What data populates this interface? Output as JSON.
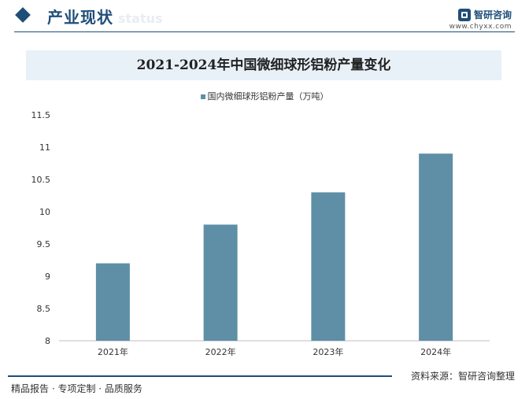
{
  "header": {
    "section_title": "产业现状",
    "section_subtitle": "status",
    "brand_name": "智研咨询",
    "brand_url": "www.chyxx.com"
  },
  "colors": {
    "accent": "#1f4e79",
    "bar": "#5e8fa6",
    "title_band": "#e8f0f8"
  },
  "chart_data": {
    "type": "bar",
    "title": "2021-2024年中国微细球形铝粉产量变化",
    "categories": [
      "2021年",
      "2022年",
      "2023年",
      "2024年"
    ],
    "series": [
      {
        "name": "国内微细球形铝粉产量（万吨）",
        "values": [
          9.2,
          9.8,
          10.3,
          10.9
        ]
      }
    ],
    "ylim": [
      8,
      11.5
    ],
    "yticks": [
      "8",
      "8.5",
      "9",
      "9.5",
      "10",
      "10.5",
      "11",
      "11.5"
    ],
    "xlabel": "",
    "ylabel": "",
    "grid": false,
    "legend": "top-center"
  },
  "footer": {
    "left": "精品报告 · 专项定制 · 品质服务",
    "right": "资料来源：智研咨询整理"
  }
}
